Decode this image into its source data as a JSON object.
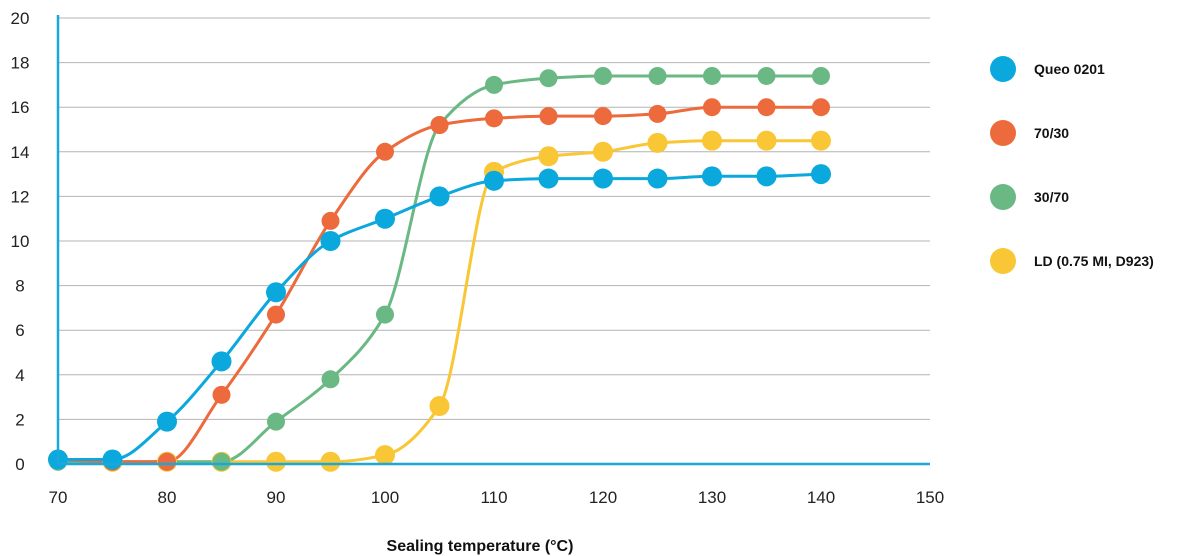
{
  "chart_data": {
    "type": "line",
    "xlabel": "Sealing temperature (°C)",
    "ylabel": "",
    "xlim": [
      70,
      150
    ],
    "ylim": [
      0,
      20
    ],
    "xticks": [
      "70",
      "80",
      "90",
      "100",
      "110",
      "120",
      "130",
      "140",
      "150"
    ],
    "yticks": [
      "0",
      "2",
      "4",
      "6",
      "8",
      "10",
      "12",
      "14",
      "16",
      "18",
      "20"
    ],
    "grid": "horizontal",
    "legend_position": "right",
    "x": [
      70,
      75,
      80,
      85,
      90,
      95,
      100,
      105,
      110,
      115,
      120,
      125,
      130,
      135,
      140
    ],
    "series": [
      {
        "name": "Queo 0201",
        "color": "#0aa8dd",
        "values": [
          0.2,
          0.2,
          1.9,
          4.6,
          7.7,
          10.0,
          11.0,
          12.0,
          12.7,
          12.8,
          12.8,
          12.8,
          12.9,
          12.9,
          13.0
        ]
      },
      {
        "name": "70/30",
        "color": "#ec6a3c",
        "values": [
          0.2,
          0.1,
          0.1,
          3.1,
          6.7,
          10.9,
          14.0,
          15.2,
          15.5,
          15.6,
          15.6,
          15.7,
          16.0,
          16.0,
          16.0
        ]
      },
      {
        "name": "30/70",
        "color": "#6ab883",
        "values": [
          0.1,
          0.1,
          0.1,
          0.1,
          1.9,
          3.8,
          6.7,
          15.2,
          17.0,
          17.3,
          17.4,
          17.4,
          17.4,
          17.4,
          17.4
        ]
      },
      {
        "name": "LD (0.75 MI, D923)",
        "color": "#f9c636",
        "values": [
          0.2,
          0.1,
          0.1,
          0.1,
          0.1,
          0.1,
          0.4,
          2.6,
          13.1,
          13.8,
          14.0,
          14.4,
          14.5,
          14.5,
          14.5
        ]
      }
    ]
  }
}
